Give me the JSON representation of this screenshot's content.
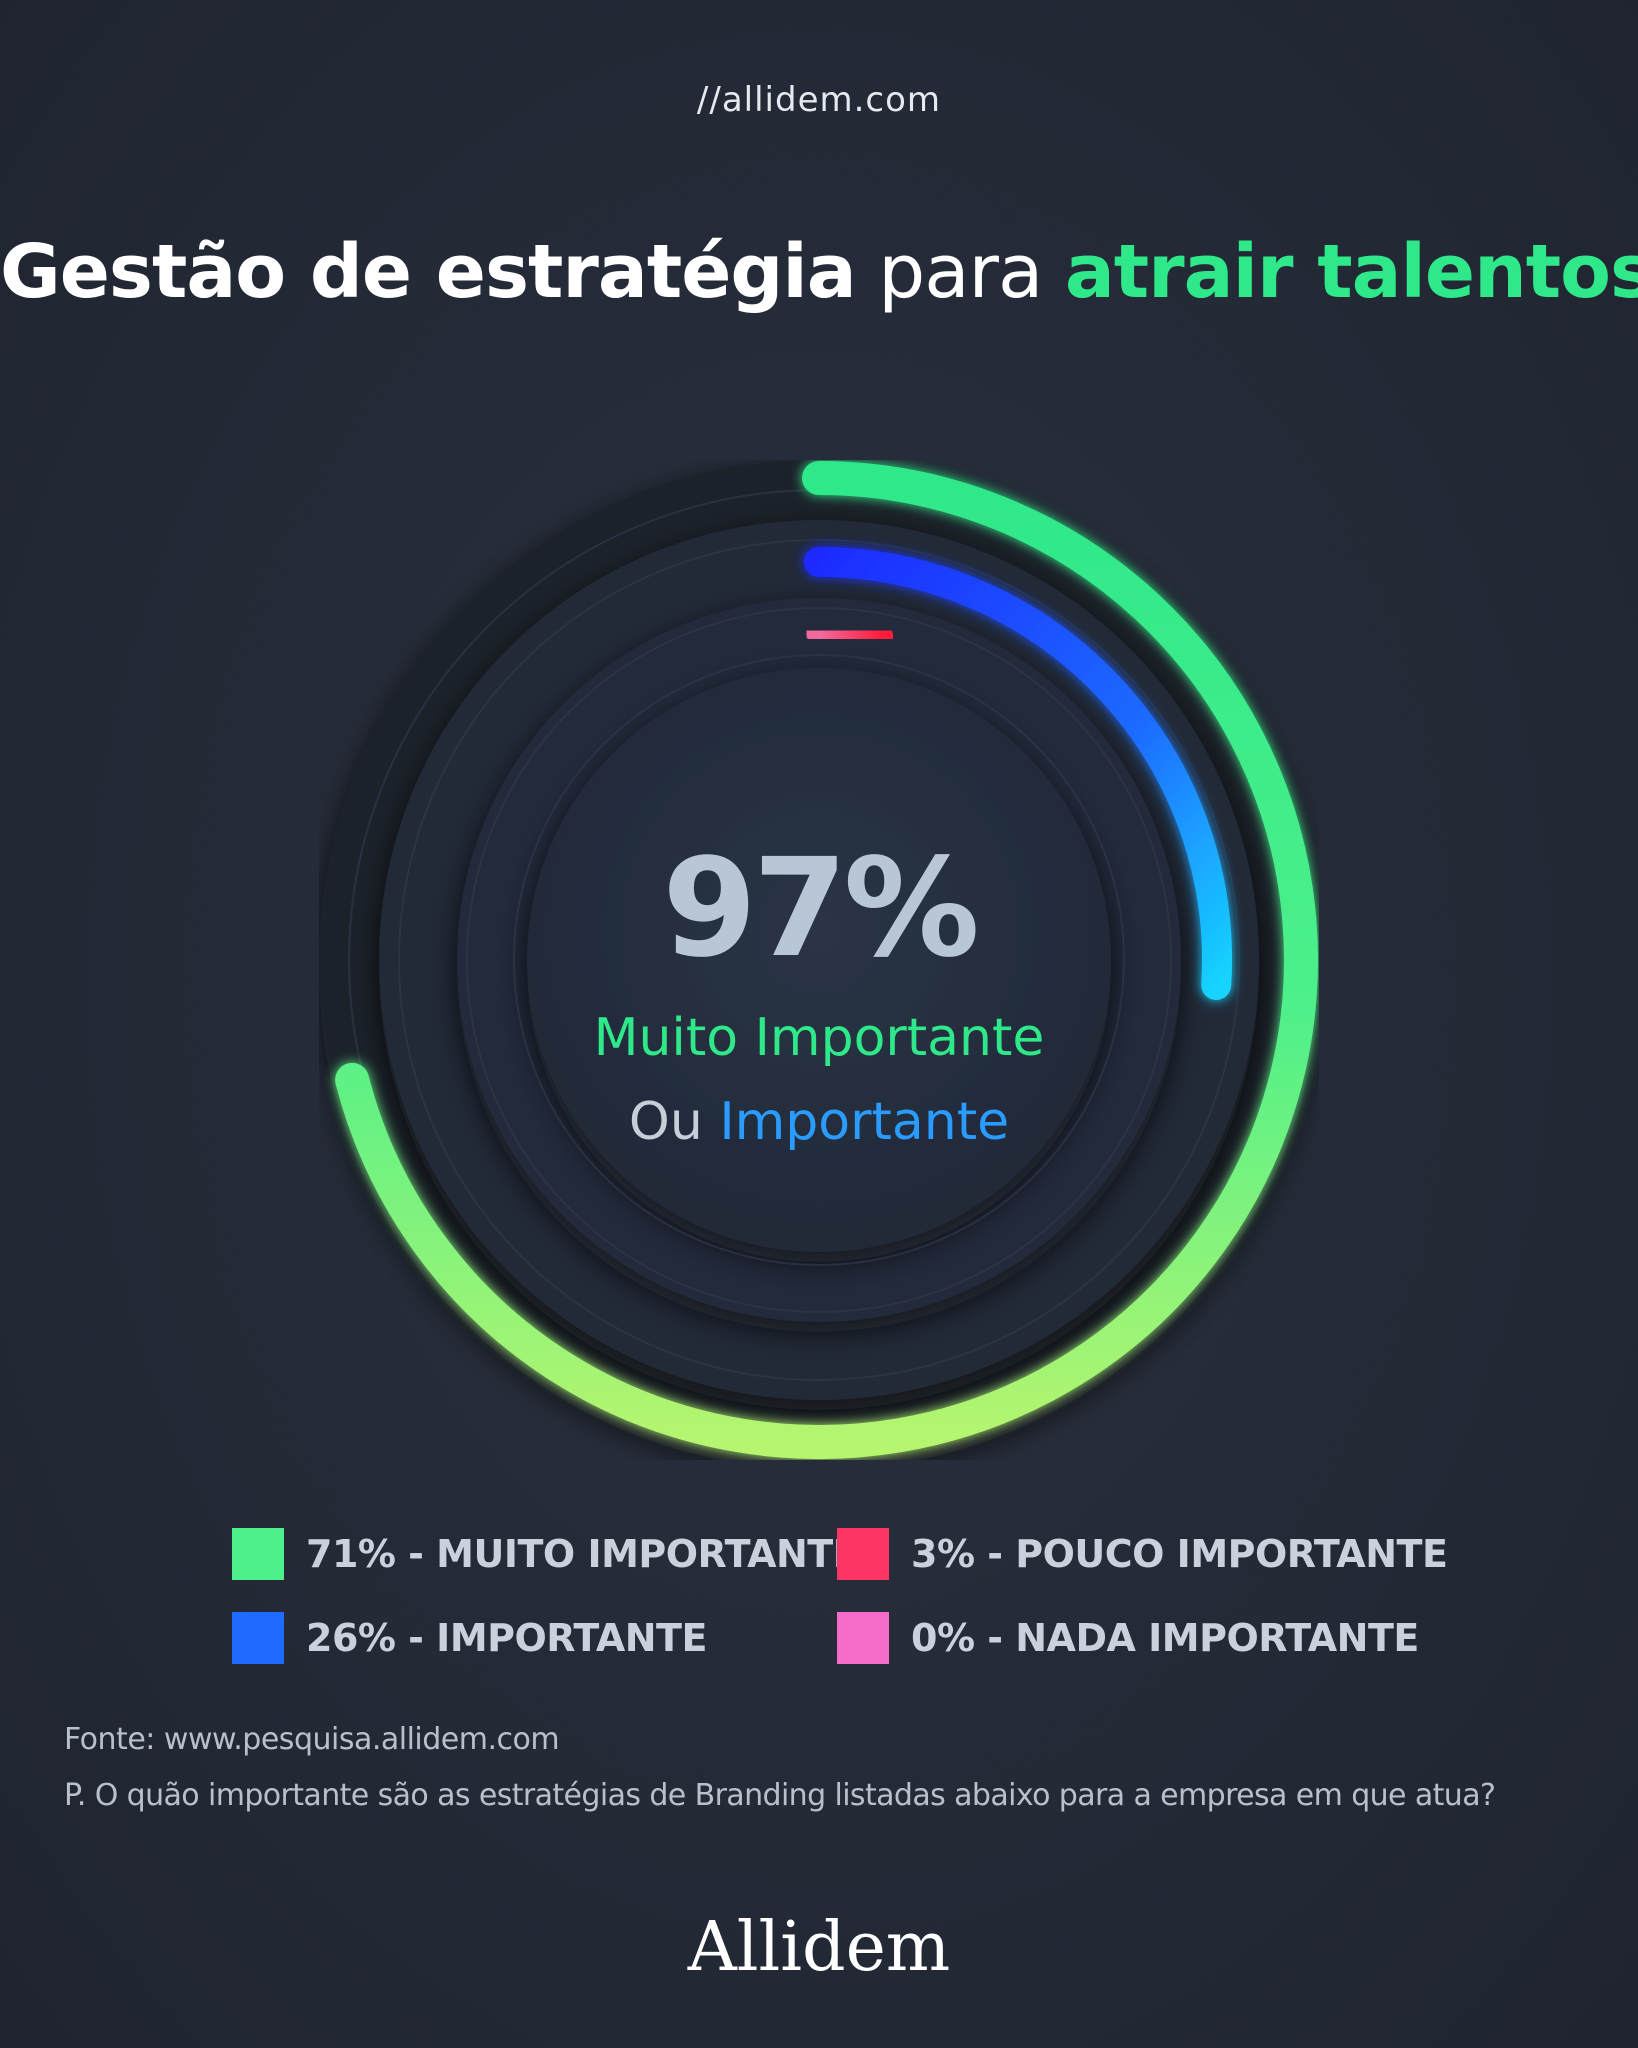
{
  "site_url": "//allidem.com",
  "headline": {
    "part1": "Gestão de estratégia",
    "part2": "para",
    "part3": "atrair talentos"
  },
  "center": {
    "value": "97%",
    "line1": "Muito Importante",
    "line2_prefix": "Ou",
    "line2_accent": "Importante"
  },
  "chart_data": {
    "type": "radial-bar",
    "series": [
      {
        "name": "MUITO IMPORTANTE",
        "value": 71,
        "label": "71% - MUITO IMPORTANTE",
        "color": "#4ef08a"
      },
      {
        "name": "IMPORTANTE",
        "value": 26,
        "label": "26% - IMPORTANTE",
        "color": "#1f6bff"
      },
      {
        "name": "POUCO IMPORTANTE",
        "value": 3,
        "label": "3% - POUCO IMPORTANTE",
        "color": "#ff3565"
      },
      {
        "name": "NADA IMPORTANTE",
        "value": 0,
        "label": "0% - NADA IMPORTANTE",
        "color": "#f56bc9"
      }
    ],
    "max": 100
  },
  "legend": [
    {
      "label": "71% - MUITO IMPORTANTE",
      "color": "#4ef08a"
    },
    {
      "label": "3% - POUCO IMPORTANTE",
      "color": "#ff3565"
    },
    {
      "label": "26% - IMPORTANTE",
      "color": "#1f6bff"
    },
    {
      "label": "0% - NADA IMPORTANTE",
      "color": "#f56bc9"
    }
  ],
  "source": "Fonte: www.pesquisa.allidem.com",
  "question": "P. O quão importante são as estratégias de Branding listadas abaixo para a empresa em que atua?",
  "brand": "Allidem"
}
